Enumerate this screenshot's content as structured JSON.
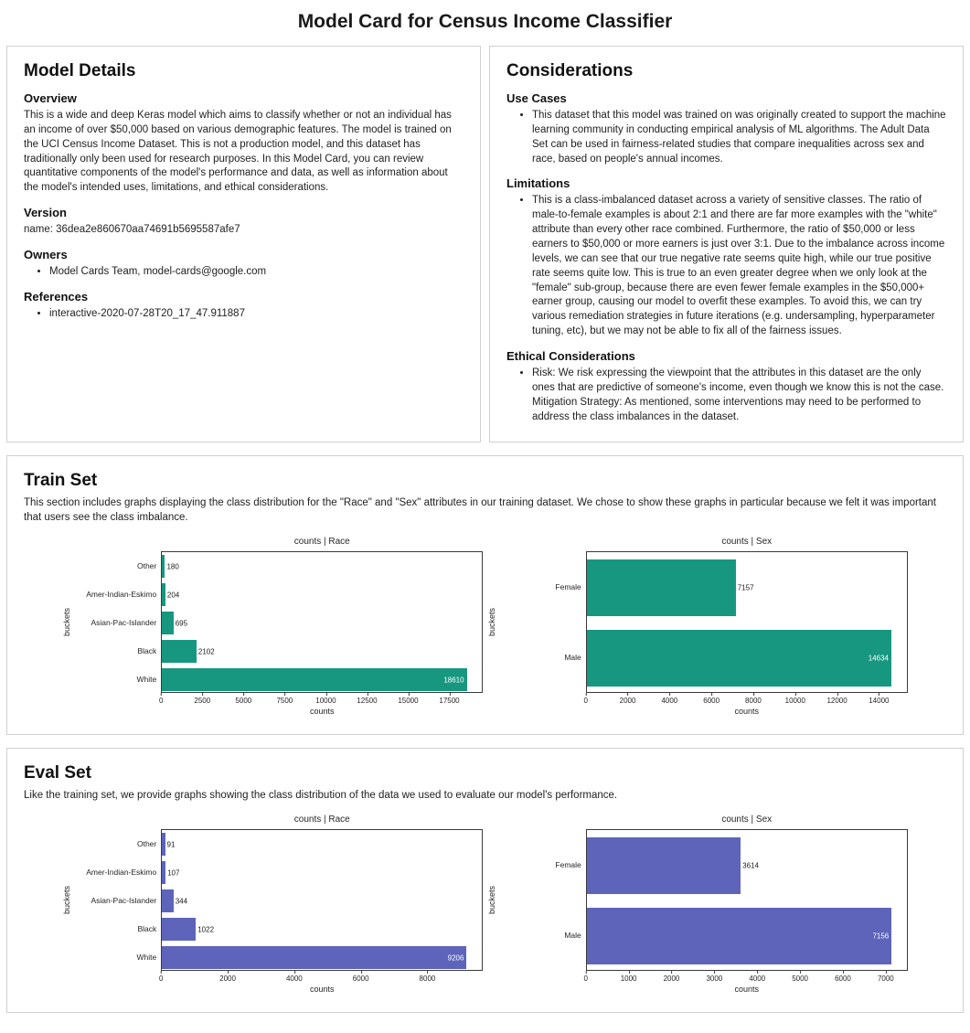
{
  "title": "Model Card for Census Income Classifier",
  "model_details": {
    "title": "Model Details",
    "overview_heading": "Overview",
    "overview_text": "This is a wide and deep Keras model which aims to classify whether or not an individual has an income of over $50,000 based on various demographic features. The model is trained on the UCI Census Income Dataset. This is not a production model, and this dataset has traditionally only been used for research purposes. In this Model Card, you can review quantitative components of the model's performance and data, as well as information about the model's intended uses, limitations, and ethical considerations.",
    "version_heading": "Version",
    "version_text": "name: 36dea2e860670aa74691b5695587afe7",
    "owners_heading": "Owners",
    "owners": [
      "Model Cards Team, model-cards@google.com"
    ],
    "references_heading": "References",
    "references": [
      "interactive-2020-07-28T20_17_47.911887"
    ]
  },
  "considerations": {
    "title": "Considerations",
    "use_cases_heading": "Use Cases",
    "use_cases": [
      "This dataset that this model was trained on was originally created to support the machine learning community in conducting empirical analysis of ML algorithms. The Adult Data Set can be used in fairness-related studies that compare inequalities across sex and race, based on people's annual incomes."
    ],
    "limitations_heading": "Limitations",
    "limitations": [
      "This is a class-imbalanced dataset across a variety of sensitive classes. The ratio of male-to-female examples is about 2:1 and there are far more examples with the \"white\" attribute than every other race combined. Furthermore, the ratio of $50,000 or less earners to $50,000 or more earners is just over 3:1. Due to the imbalance across income levels, we can see that our true negative rate seems quite high, while our true positive rate seems quite low. This is true to an even greater degree when we only look at the \"female\" sub-group, because there are even fewer female examples in the $50,000+ earner group, causing our model to overfit these examples. To avoid this, we can try various remediation strategies in future iterations (e.g. undersampling, hyperparameter tuning, etc), but we may not be able to fix all of the fairness issues."
    ],
    "ethical_heading": "Ethical Considerations",
    "ethical": [
      {
        "risk": "Risk: We risk expressing the viewpoint that the attributes in this dataset are the only ones that are predictive of someone's income, even though we know this is not the case.",
        "mitigation": "Mitigation Strategy: As mentioned, some interventions may need to be performed to address the class imbalances in the dataset."
      }
    ]
  },
  "train_set": {
    "title": "Train Set",
    "description": "This section includes graphs displaying the class distribution for the \"Race\" and \"Sex\" attributes in our training dataset. We chose to show these graphs in particular because we felt it was important that users see the class imbalance."
  },
  "eval_set": {
    "title": "Eval Set",
    "description": "Like the training set, we provide graphs showing the class distribution of the data we used to evaluate our model's performance."
  },
  "colors": {
    "train_bar": "#17977f",
    "eval_bar": "#5d64ba"
  },
  "chart_data": [
    {
      "type": "bar",
      "orientation": "horizontal",
      "title": "counts | Race",
      "xlabel": "counts",
      "ylabel": "buckets",
      "categories": [
        "Other",
        "Amer-Indian-Eskimo",
        "Asian-Pac-Islander",
        "Black",
        "White"
      ],
      "values": [
        180,
        204,
        695,
        2102,
        18610
      ],
      "xticks": [
        0,
        2500,
        5000,
        7500,
        10000,
        12500,
        15000,
        17500
      ],
      "xmax": 19540,
      "color": "#17977f",
      "grid": false,
      "legend": "none"
    },
    {
      "type": "bar",
      "orientation": "horizontal",
      "title": "counts | Sex",
      "xlabel": "counts",
      "ylabel": "buckets",
      "categories": [
        "Female",
        "Male"
      ],
      "values": [
        7157,
        14634
      ],
      "xticks": [
        0,
        2000,
        4000,
        6000,
        8000,
        10000,
        12000,
        14000
      ],
      "xmax": 15370,
      "color": "#17977f",
      "grid": false,
      "legend": "none"
    },
    {
      "type": "bar",
      "orientation": "horizontal",
      "title": "counts | Race",
      "xlabel": "counts",
      "ylabel": "buckets",
      "categories": [
        "Other",
        "Amer-Indian-Eskimo",
        "Asian-Pac-Islander",
        "Black",
        "White"
      ],
      "values": [
        91,
        107,
        344,
        1022,
        9206
      ],
      "xticks": [
        0,
        2000,
        4000,
        6000,
        8000
      ],
      "xmax": 9670,
      "color": "#5d64ba",
      "grid": false,
      "legend": "none"
    },
    {
      "type": "bar",
      "orientation": "horizontal",
      "title": "counts | Sex",
      "xlabel": "counts",
      "ylabel": "buckets",
      "categories": [
        "Female",
        "Male"
      ],
      "values": [
        3614,
        7156
      ],
      "xticks": [
        0,
        1000,
        2000,
        3000,
        4000,
        5000,
        6000,
        7000
      ],
      "xmax": 7510,
      "color": "#5d64ba",
      "grid": false,
      "legend": "none"
    }
  ]
}
